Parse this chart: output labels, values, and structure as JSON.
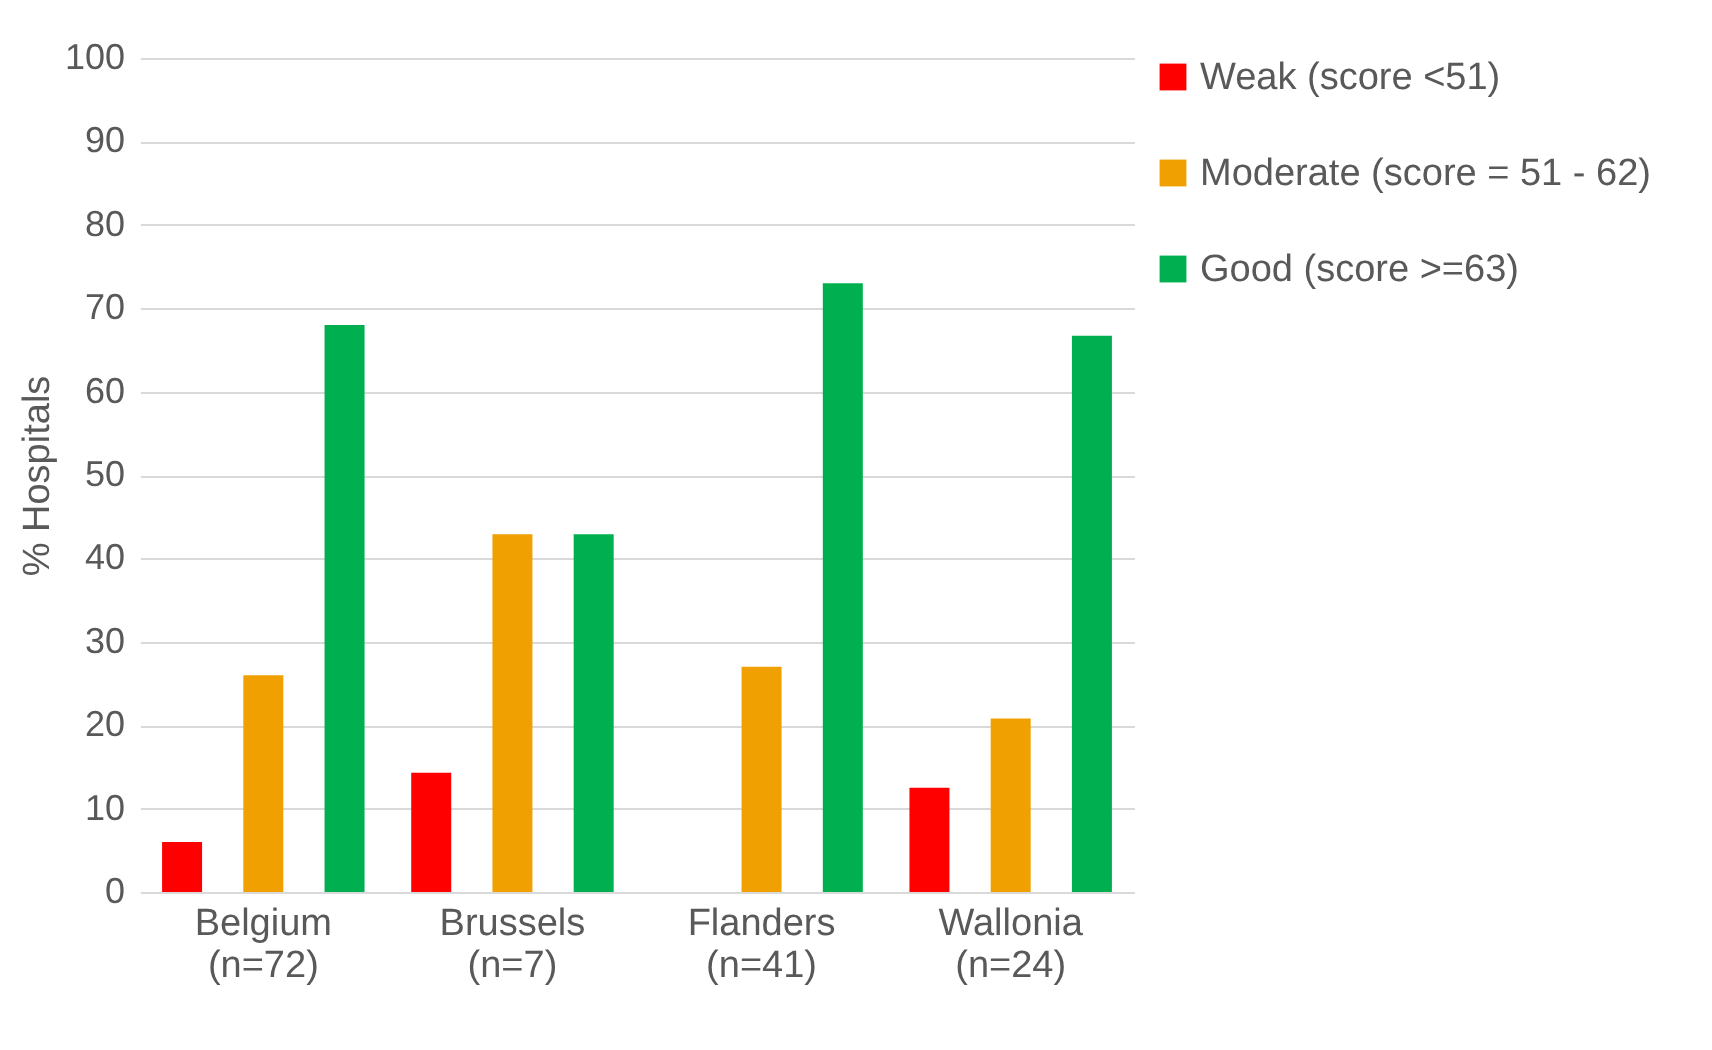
{
  "chart_data": {
    "type": "bar",
    "ylabel": "% Hospitals",
    "categories": [
      "Belgium\n(n=72)",
      "Brussels\n(n=7)",
      "Flanders\n(n=41)",
      "Wallonia\n(n=24)"
    ],
    "series": [
      {
        "name": "Weak (score <51)",
        "color": "#ff0000",
        "values": [
          6,
          14.3,
          0,
          12.5
        ]
      },
      {
        "name": "Moderate (score = 51 - 62)",
        "color": "#f0a000",
        "values": [
          26,
          42.9,
          27,
          20.8
        ]
      },
      {
        "name": "Good (score >=63)",
        "color": "#00b050",
        "values": [
          68,
          42.9,
          73,
          66.7
        ]
      }
    ],
    "ylim": [
      0,
      100
    ],
    "yticks": [
      0,
      10,
      20,
      30,
      40,
      50,
      60,
      70,
      80,
      90,
      100
    ],
    "grid": "y",
    "legend": "right"
  }
}
